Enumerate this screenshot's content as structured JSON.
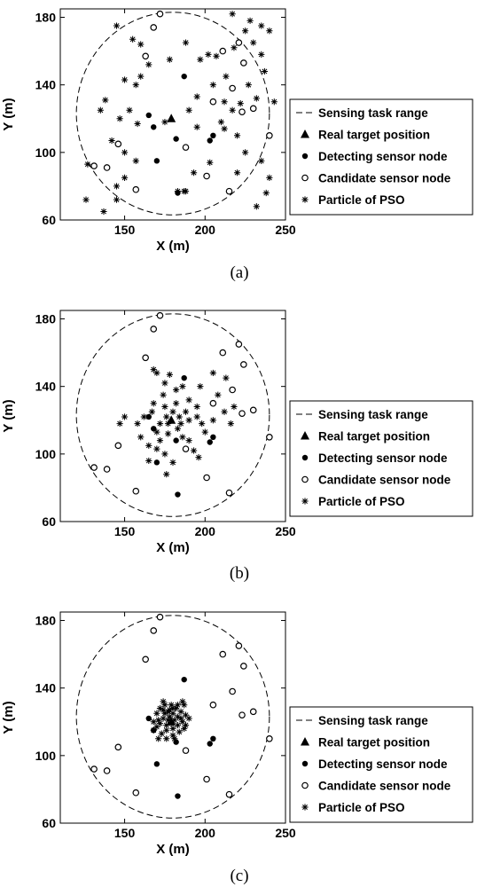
{
  "chart_data": [
    {
      "type": "scatter",
      "caption": "(a)",
      "xlabel": "X (m)",
      "ylabel": "Y (m)",
      "xlim": [
        110,
        250
      ],
      "ylim": [
        60,
        185
      ],
      "xticks": [
        150,
        200,
        250
      ],
      "yticks": [
        60,
        100,
        140,
        180
      ],
      "circle": {
        "name": "Sensing task range",
        "cx": 180,
        "cy": 123,
        "r": 60
      },
      "target": {
        "name": "Real target position",
        "x": 179,
        "y": 120
      },
      "detecting": {
        "name": "Detecting sensor node",
        "points": [
          [
            165,
            122
          ],
          [
            168,
            115
          ],
          [
            170,
            95
          ],
          [
            182,
            108
          ],
          [
            187,
            145
          ],
          [
            205,
            110
          ],
          [
            203,
            107
          ],
          [
            183,
            76
          ]
        ]
      },
      "candidate": {
        "name": "Candidate sensor node",
        "points": [
          [
            172,
            182
          ],
          [
            168,
            174
          ],
          [
            163,
            157
          ],
          [
            221,
            165
          ],
          [
            211,
            160
          ],
          [
            224,
            153
          ],
          [
            217,
            138
          ],
          [
            205,
            130
          ],
          [
            230,
            126
          ],
          [
            223,
            124
          ],
          [
            240,
            110
          ],
          [
            146,
            105
          ],
          [
            139,
            91
          ],
          [
            131,
            92
          ],
          [
            157,
            78
          ],
          [
            215,
            77
          ],
          [
            188,
            103
          ],
          [
            201,
            86
          ]
        ]
      },
      "particles": {
        "name": "Particle of PSO",
        "points": [
          [
            145,
            175
          ],
          [
            155,
            167
          ],
          [
            165,
            152
          ],
          [
            160,
            145
          ],
          [
            150,
            143
          ],
          [
            157,
            140
          ],
          [
            138,
            131
          ],
          [
            135,
            125
          ],
          [
            153,
            125
          ],
          [
            147,
            120
          ],
          [
            158,
            117
          ],
          [
            175,
            118
          ],
          [
            142,
            107
          ],
          [
            150,
            100
          ],
          [
            157,
            95
          ],
          [
            150,
            85
          ],
          [
            145,
            80
          ],
          [
            145,
            72
          ],
          [
            137,
            65
          ],
          [
            127,
            93
          ],
          [
            126,
            72
          ],
          [
            160,
            164
          ],
          [
            178,
            155
          ],
          [
            188,
            165
          ],
          [
            197,
            155
          ],
          [
            207,
            157
          ],
          [
            218,
            162
          ],
          [
            225,
            172
          ],
          [
            217,
            182
          ],
          [
            228,
            178
          ],
          [
            235,
            175
          ],
          [
            240,
            172
          ],
          [
            230,
            165
          ],
          [
            235,
            158
          ],
          [
            237,
            148
          ],
          [
            227,
            140
          ],
          [
            232,
            132
          ],
          [
            243,
            130
          ],
          [
            222,
            129
          ],
          [
            212,
            130
          ],
          [
            195,
            133
          ],
          [
            190,
            125
          ],
          [
            195,
            115
          ],
          [
            212,
            114
          ],
          [
            220,
            110
          ],
          [
            225,
            100
          ],
          [
            235,
            95
          ],
          [
            240,
            85
          ],
          [
            232,
            68
          ],
          [
            238,
            76
          ],
          [
            220,
            88
          ],
          [
            203,
            94
          ],
          [
            193,
            88
          ],
          [
            183,
            77
          ],
          [
            187,
            77
          ],
          [
            188,
            77
          ],
          [
            210,
            118
          ],
          [
            202,
            158
          ],
          [
            213,
            145
          ],
          [
            205,
            140
          ],
          [
            217,
            125
          ]
        ]
      },
      "legend": [
        "Sensing task range",
        "Real target position",
        "Detecting sensor node",
        "Candidate sensor node",
        "Particle of PSO"
      ]
    },
    {
      "type": "scatter",
      "caption": "(b)",
      "xlabel": "X (m)",
      "ylabel": "Y (m)",
      "xlim": [
        110,
        250
      ],
      "ylim": [
        60,
        185
      ],
      "xticks": [
        150,
        200,
        250
      ],
      "yticks": [
        60,
        100,
        140,
        180
      ],
      "circle": {
        "name": "Sensing task range",
        "cx": 180,
        "cy": 123,
        "r": 60
      },
      "target": {
        "name": "Real target position",
        "x": 179,
        "y": 120
      },
      "detecting": {
        "name": "Detecting sensor node",
        "points": [
          [
            165,
            122
          ],
          [
            168,
            115
          ],
          [
            170,
            95
          ],
          [
            182,
            108
          ],
          [
            187,
            145
          ],
          [
            205,
            110
          ],
          [
            203,
            107
          ],
          [
            183,
            76
          ]
        ]
      },
      "candidate": {
        "name": "Candidate sensor node",
        "points": [
          [
            172,
            182
          ],
          [
            168,
            174
          ],
          [
            163,
            157
          ],
          [
            221,
            165
          ],
          [
            211,
            160
          ],
          [
            224,
            153
          ],
          [
            217,
            138
          ],
          [
            205,
            130
          ],
          [
            230,
            126
          ],
          [
            223,
            124
          ],
          [
            240,
            110
          ],
          [
            146,
            105
          ],
          [
            139,
            91
          ],
          [
            131,
            92
          ],
          [
            157,
            78
          ],
          [
            215,
            77
          ],
          [
            188,
            103
          ],
          [
            201,
            86
          ]
        ]
      },
      "particles": {
        "name": "Particle of PSO",
        "points": [
          [
            168,
            150
          ],
          [
            170,
            148
          ],
          [
            175,
            142
          ],
          [
            178,
            147
          ],
          [
            182,
            138
          ],
          [
            186,
            140
          ],
          [
            174,
            135
          ],
          [
            168,
            130
          ],
          [
            175,
            128
          ],
          [
            182,
            130
          ],
          [
            190,
            132
          ],
          [
            195,
            128
          ],
          [
            198,
            118
          ],
          [
            200,
            113
          ],
          [
            188,
            125
          ],
          [
            184,
            122
          ],
          [
            176,
            122
          ],
          [
            172,
            118
          ],
          [
            167,
            125
          ],
          [
            162,
            122
          ],
          [
            158,
            118
          ],
          [
            150,
            122
          ],
          [
            147,
            118
          ],
          [
            160,
            110
          ],
          [
            165,
            105
          ],
          [
            172,
            108
          ],
          [
            177,
            112
          ],
          [
            183,
            115
          ],
          [
            186,
            110
          ],
          [
            190,
            108
          ],
          [
            193,
            102
          ],
          [
            196,
            98
          ],
          [
            180,
            95
          ],
          [
            175,
            100
          ],
          [
            170,
            103
          ],
          [
            176,
            88
          ],
          [
            165,
            96
          ],
          [
            190,
            120
          ],
          [
            195,
            122
          ],
          [
            205,
            120
          ],
          [
            212,
            125
          ],
          [
            208,
            135
          ],
          [
            213,
            145
          ],
          [
            205,
            148
          ],
          [
            197,
            140
          ],
          [
            216,
            118
          ],
          [
            218,
            128
          ],
          [
            180,
            125
          ],
          [
            177,
            118
          ],
          [
            185,
            118
          ],
          [
            170,
            113
          ]
        ]
      },
      "legend": [
        "Sensing task range",
        "Real target position",
        "Detecting sensor node",
        "Candidate sensor node",
        "Particle of PSO"
      ]
    },
    {
      "type": "scatter",
      "caption": "(c)",
      "xlabel": "X (m)",
      "ylabel": "Y (m)",
      "xlim": [
        110,
        250
      ],
      "ylim": [
        60,
        185
      ],
      "xticks": [
        150,
        200,
        250
      ],
      "yticks": [
        60,
        100,
        140,
        180
      ],
      "circle": {
        "name": "Sensing task range",
        "cx": 180,
        "cy": 123,
        "r": 60
      },
      "target": {
        "name": "Real target position",
        "x": 179,
        "y": 120
      },
      "detecting": {
        "name": "Detecting sensor node",
        "points": [
          [
            165,
            122
          ],
          [
            168,
            115
          ],
          [
            170,
            95
          ],
          [
            182,
            108
          ],
          [
            187,
            145
          ],
          [
            205,
            110
          ],
          [
            203,
            107
          ],
          [
            183,
            76
          ]
        ]
      },
      "candidate": {
        "name": "Candidate sensor node",
        "points": [
          [
            172,
            182
          ],
          [
            168,
            174
          ],
          [
            163,
            157
          ],
          [
            221,
            165
          ],
          [
            211,
            160
          ],
          [
            224,
            153
          ],
          [
            217,
            138
          ],
          [
            205,
            130
          ],
          [
            230,
            126
          ],
          [
            223,
            124
          ],
          [
            240,
            110
          ],
          [
            146,
            105
          ],
          [
            139,
            91
          ],
          [
            131,
            92
          ],
          [
            157,
            78
          ],
          [
            215,
            77
          ],
          [
            188,
            103
          ],
          [
            201,
            86
          ]
        ]
      },
      "particles": {
        "name": "Particle of PSO",
        "points": [
          [
            170,
            125
          ],
          [
            172,
            128
          ],
          [
            175,
            130
          ],
          [
            178,
            127
          ],
          [
            180,
            125
          ],
          [
            182,
            128
          ],
          [
            185,
            126
          ],
          [
            188,
            124
          ],
          [
            190,
            122
          ],
          [
            186,
            120
          ],
          [
            183,
            118
          ],
          [
            180,
            116
          ],
          [
            176,
            115
          ],
          [
            173,
            113
          ],
          [
            170,
            117
          ],
          [
            168,
            120
          ],
          [
            171,
            121
          ],
          [
            174,
            122
          ],
          [
            177,
            121
          ],
          [
            179,
            119
          ],
          [
            181,
            121
          ],
          [
            183,
            123
          ],
          [
            185,
            122
          ],
          [
            176,
            118
          ],
          [
            178,
            123
          ],
          [
            175,
            125
          ],
          [
            172,
            119
          ],
          [
            180,
            112
          ],
          [
            184,
            114
          ],
          [
            187,
            116
          ],
          [
            188,
            118
          ],
          [
            168,
            115
          ],
          [
            171,
            110
          ],
          [
            176,
            110
          ],
          [
            181,
            110
          ],
          [
            187,
            130
          ],
          [
            179,
            130
          ],
          [
            174,
            132
          ],
          [
            186,
            132
          ],
          [
            183,
            130
          ],
          [
            177,
            126
          ],
          [
            180,
            128
          ],
          [
            174,
            127
          ]
        ]
      },
      "legend": [
        "Sensing task range",
        "Real target position",
        "Detecting sensor node",
        "Candidate sensor node",
        "Particle of PSO"
      ]
    }
  ]
}
